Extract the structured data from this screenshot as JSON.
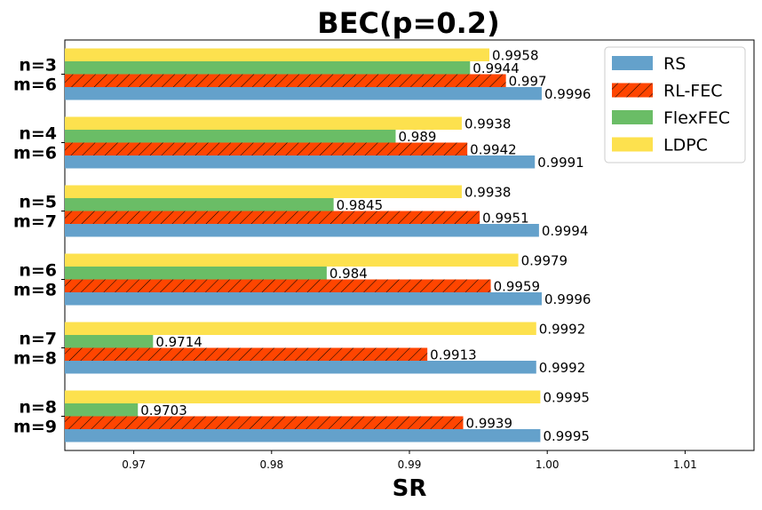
{
  "chart_data": {
    "type": "bar",
    "orientation": "horizontal",
    "title": "BEC(p=0.2)",
    "xlabel": "SR",
    "ylabel": "",
    "xlim": [
      0.965,
      1.015
    ],
    "xticks": [
      "0.97",
      "0.98",
      "0.99",
      "1.00",
      "1.01"
    ],
    "categories": [
      [
        "n=3",
        "m=6"
      ],
      [
        "n=4",
        "m=6"
      ],
      [
        "n=5",
        "m=7"
      ],
      [
        "n=6",
        "m=8"
      ],
      [
        "n=7",
        "m=8"
      ],
      [
        "n=8",
        "m=9"
      ]
    ],
    "series": [
      {
        "name": "RS",
        "color": "#64a1cb",
        "hatch": false,
        "values": [
          0.9996,
          0.9991,
          0.9994,
          0.9996,
          0.9992,
          0.9995
        ],
        "labels": [
          "0.9996",
          "0.9991",
          "0.9994",
          "0.9996",
          "0.9992",
          "0.9995"
        ]
      },
      {
        "name": "RL-FEC",
        "color": "#ff4500",
        "hatch": true,
        "values": [
          0.997,
          0.9942,
          0.9951,
          0.9959,
          0.9913,
          0.9939
        ],
        "labels": [
          "0.997",
          "0.9942",
          "0.9951",
          "0.9959",
          "0.9913",
          "0.9939"
        ]
      },
      {
        "name": "FlexFEC",
        "color": "#6abd66",
        "hatch": false,
        "values": [
          0.9944,
          0.989,
          0.9845,
          0.984,
          0.9714,
          0.9703
        ],
        "labels": [
          "0.9944",
          "0.989",
          "0.9845",
          "0.984",
          "0.9714",
          "0.9703"
        ]
      },
      {
        "name": "LDPC",
        "color": "#fde14e",
        "hatch": false,
        "values": [
          0.9958,
          0.9938,
          0.9938,
          0.9979,
          0.9992,
          0.9995
        ],
        "labels": [
          "0.9958",
          "0.9938",
          "0.9938",
          "0.9979",
          "0.9992",
          "0.9995"
        ]
      }
    ],
    "grid": false,
    "legend_position": "top-right"
  }
}
